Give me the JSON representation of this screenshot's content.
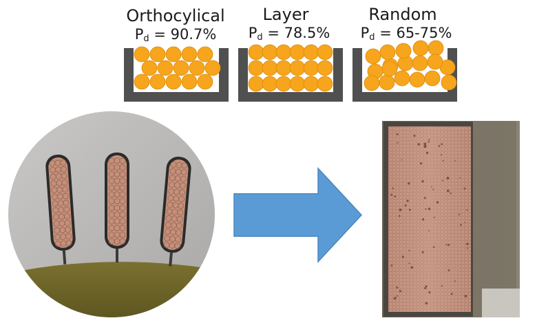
{
  "packings": [
    {
      "title": "Orthocylical",
      "pd_symbol": "P",
      "pd_sub": "d",
      "pd_value": "= 90.7%"
    },
    {
      "title": "Layer",
      "pd_symbol": "P",
      "pd_sub": "d",
      "pd_value": "= 78.5%"
    },
    {
      "title": "Random",
      "pd_symbol": "P",
      "pd_sub": "d",
      "pd_value": "= 65-75%"
    }
  ],
  "colors": {
    "wire": "#f6a51c",
    "wire_edge": "#d98a10",
    "channel": "#505050",
    "arrow": "#5b9bd5",
    "arrow_edge": "#4a86bd",
    "copper": "#c4907a",
    "stator": "#b7b6b4",
    "endwinding": "#6e6622"
  }
}
